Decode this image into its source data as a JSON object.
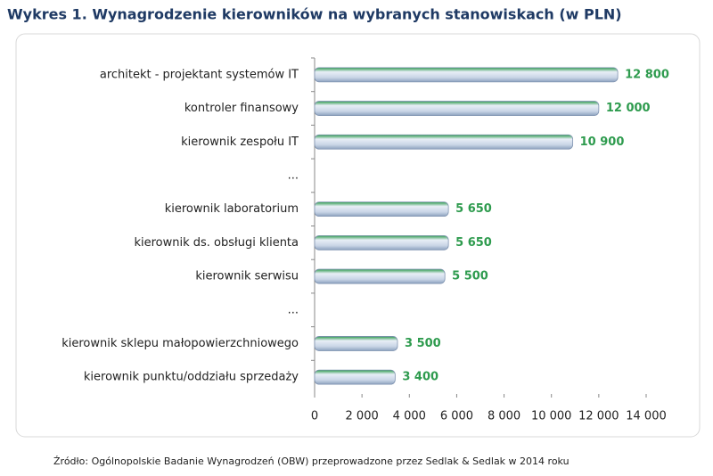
{
  "chart_data": {
    "type": "bar",
    "orientation": "horizontal",
    "title": "Wykres 1. Wynagrodzenie kierowników na wybranych stanowiskach (w PLN)",
    "source": "Źródło: Ogólnopolskie Badanie Wynagrodzeń (OBW) przeprowadzone przez Sedlak & Sedlak w 2014 roku",
    "categories": [
      "architekt - projektant systemów IT",
      "kontroler finansowy",
      "kierownik zespołu IT",
      "...",
      "kierownik laboratorium",
      "kierownik ds. obsługi klienta",
      "kierownik serwisu",
      "...",
      "kierownik sklepu małopowierzchniowego",
      "kierownik punktu/oddziału sprzedaży"
    ],
    "values": [
      12800,
      12000,
      10900,
      null,
      5650,
      5650,
      5500,
      null,
      3500,
      3400
    ],
    "value_labels": [
      "12 800",
      "12 000",
      "10 900",
      null,
      "5 650",
      "5 650",
      "5 500",
      null,
      "3 500",
      "3 400"
    ],
    "color": "#2e9b4e",
    "xlim": [
      0,
      14000
    ],
    "xticks": [
      0,
      {
        "value": 2000,
        "label": "2 000"
      },
      {
        "value": 4000,
        "label": "4 000"
      },
      {
        "value": 6000,
        "label": "6 000"
      },
      {
        "value": 8000,
        "label": "8 000"
      },
      {
        "value": 10000,
        "label": "10 000"
      },
      {
        "value": 12000,
        "label": "12 000"
      },
      {
        "value": 14000,
        "label": "14 000"
      }
    ],
    "grid": false
  }
}
